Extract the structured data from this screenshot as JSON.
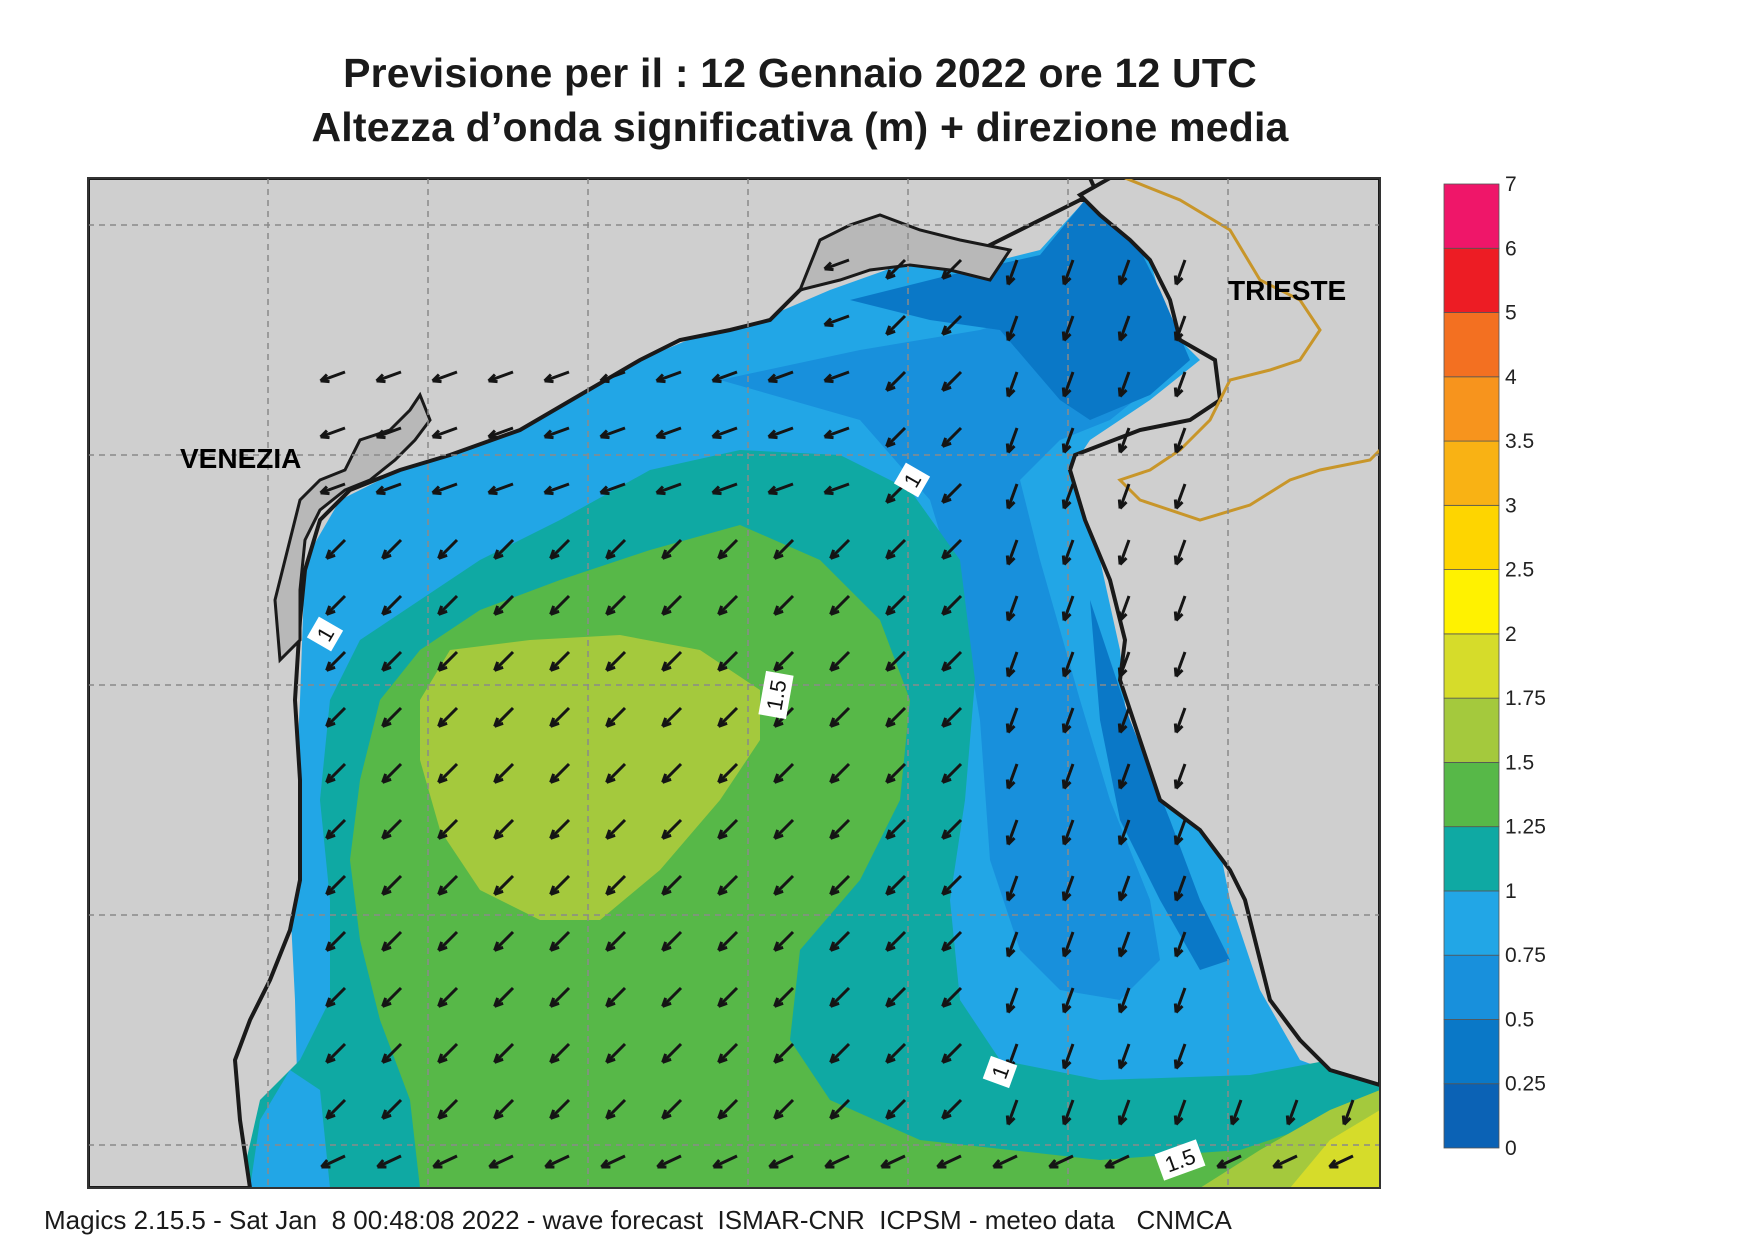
{
  "title_line1": "Previsione per il  :  12  Gennaio  2022   ore 12 UTC",
  "title_line2": "Altezza d’onda significativa (m) + direzione media",
  "cities": [
    {
      "name": "VENEZIA"
    },
    {
      "name": "TRIESTE"
    }
  ],
  "contour_labels": [
    "1",
    "1",
    "1.5",
    "1",
    "1.5"
  ],
  "colorbar": {
    "ticks": [
      "0",
      "0.25",
      "0.5",
      "0.75",
      "1",
      "1.25",
      "1.5",
      "1.75",
      "2",
      "2.5",
      "3",
      "3.5",
      "4",
      "5",
      "6",
      "7"
    ],
    "colors": [
      "#0b62b5",
      "#0a78c7",
      "#1890dc",
      "#22a6e6",
      "#0fa9a3",
      "#57b848",
      "#a4c93d",
      "#d6dc2a",
      "#fff200",
      "#fed500",
      "#f9b214",
      "#f7941d",
      "#f37021",
      "#ed1c24",
      "#ef1669"
    ]
  },
  "footer": "Magics 2.15.5 - Sat Jan  8 00:48:08 2022 - wave forecast  ISMAR-CNR  ICPSM - meteo data   CNMCA"
}
